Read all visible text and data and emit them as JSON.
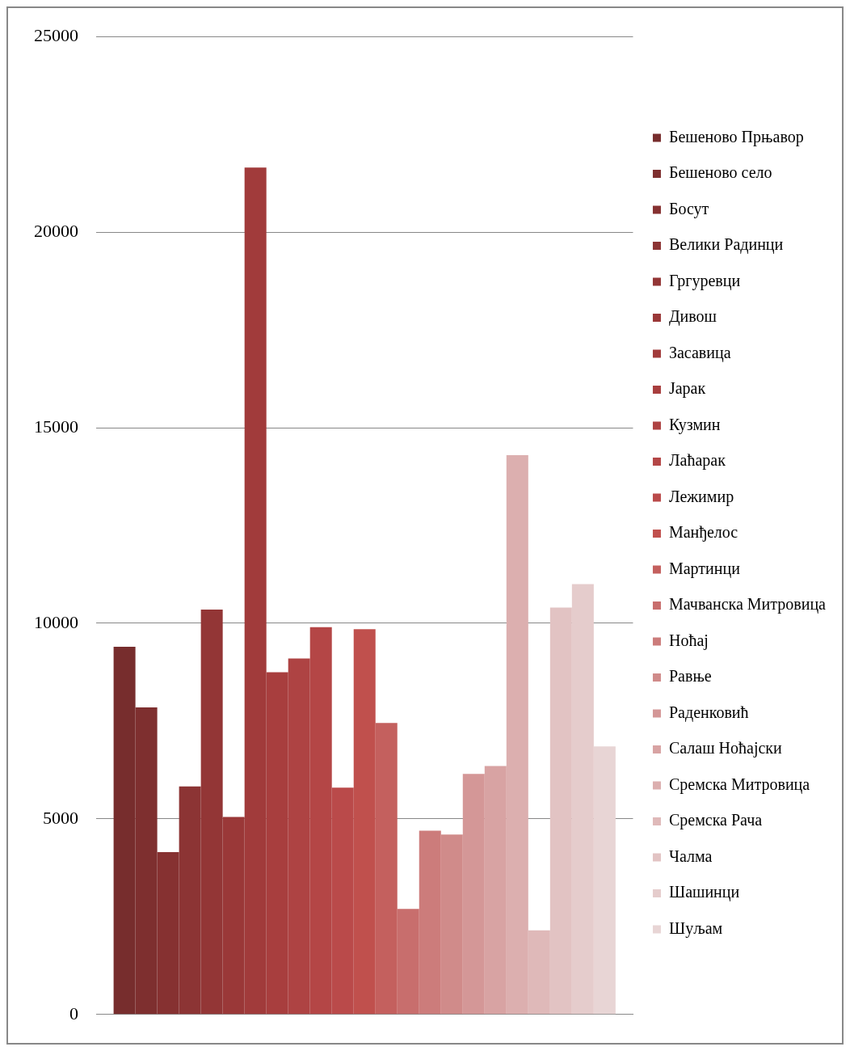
{
  "chart_data": {
    "type": "bar",
    "categories": [
      null
    ],
    "series": [
      {
        "name": "Бешеново Прњавор",
        "color": "#772d2d",
        "values": [
          9400
        ]
      },
      {
        "name": "Бешеново село",
        "color": "#7e2f2f",
        "values": [
          7850
        ]
      },
      {
        "name": "Босут",
        "color": "#863131",
        "values": [
          4150
        ]
      },
      {
        "name": "Велики Радинци",
        "color": "#8c3434",
        "values": [
          5830
        ]
      },
      {
        "name": "Гргуревци",
        "color": "#933636",
        "values": [
          10350
        ]
      },
      {
        "name": "Дивош",
        "color": "#9a3838",
        "values": [
          5050
        ]
      },
      {
        "name": "Засавица",
        "color": "#a13b3b",
        "values": [
          21650
        ]
      },
      {
        "name": "Јарак",
        "color": "#a83e3e",
        "values": [
          8750
        ]
      },
      {
        "name": "Кузмин",
        "color": "#ae4343",
        "values": [
          9100
        ]
      },
      {
        "name": "Лаћарак",
        "color": "#b44646",
        "values": [
          9900
        ]
      },
      {
        "name": "Лежимир",
        "color": "#ba4a4a",
        "values": [
          5800
        ]
      },
      {
        "name": "Манђелос",
        "color": "#c0504d",
        "values": [
          9850
        ]
      },
      {
        "name": "Мартинци",
        "color": "#c4605e",
        "values": [
          7450
        ]
      },
      {
        "name": "Мачванска Митровица",
        "color": "#c86e6d",
        "values": [
          2700
        ]
      },
      {
        "name": "Ноћај",
        "color": "#cc7c7b",
        "values": [
          4700
        ]
      },
      {
        "name": "Равње",
        "color": "#d08b8a",
        "values": [
          4600
        ]
      },
      {
        "name": "Раденковић",
        "color": "#d49797",
        "values": [
          6150
        ]
      },
      {
        "name": "Салаш Ноћајски",
        "color": "#d8a3a3",
        "values": [
          6350
        ]
      },
      {
        "name": "Сремска Митровица",
        "color": "#dcafaf",
        "values": [
          14300
        ]
      },
      {
        "name": "Сремска Рача",
        "color": "#dfb9b9",
        "values": [
          2150
        ]
      },
      {
        "name": "Чалма",
        "color": "#e2c3c3",
        "values": [
          10400
        ]
      },
      {
        "name": "Шашинци",
        "color": "#e5cccc",
        "values": [
          11000
        ]
      },
      {
        "name": "Шуљам",
        "color": "#e8d5d5",
        "values": [
          6850
        ]
      }
    ],
    "ylim": [
      0,
      25000
    ],
    "yticks": [
      0,
      5000,
      10000,
      15000,
      20000,
      25000
    ],
    "grid": "y",
    "legend": "right"
  }
}
